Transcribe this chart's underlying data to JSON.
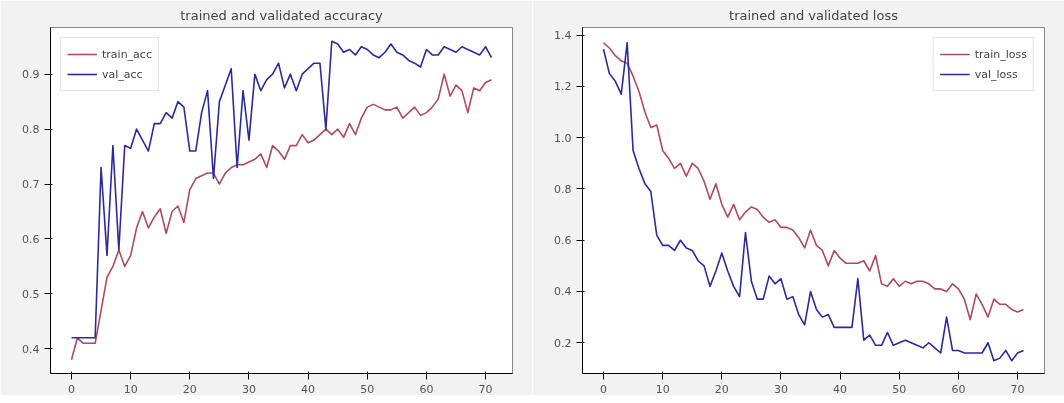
{
  "chart_data": [
    {
      "type": "line",
      "title": "trained and validated accuracy",
      "x": [
        0,
        1,
        2,
        3,
        4,
        5,
        6,
        7,
        8,
        9,
        10,
        11,
        12,
        13,
        14,
        15,
        16,
        17,
        18,
        19,
        20,
        21,
        22,
        23,
        24,
        25,
        26,
        27,
        28,
        29,
        30,
        31,
        32,
        33,
        34,
        35,
        36,
        37,
        38,
        39,
        40,
        41,
        42,
        43,
        44,
        45,
        46,
        47,
        48,
        49,
        50,
        51,
        52,
        53,
        54,
        55,
        56,
        57,
        58,
        59,
        60,
        61,
        62,
        63,
        64,
        65,
        66,
        67,
        68,
        69,
        70,
        71
      ],
      "series": [
        {
          "name": "train_acc",
          "color": "#b04a5e",
          "values": [
            0.38,
            0.42,
            0.41,
            0.41,
            0.41,
            0.47,
            0.53,
            0.55,
            0.58,
            0.55,
            0.57,
            0.62,
            0.65,
            0.62,
            0.64,
            0.655,
            0.61,
            0.65,
            0.66,
            0.63,
            0.69,
            0.71,
            0.715,
            0.72,
            0.72,
            0.7,
            0.72,
            0.73,
            0.735,
            0.735,
            0.74,
            0.745,
            0.755,
            0.73,
            0.77,
            0.76,
            0.745,
            0.77,
            0.77,
            0.79,
            0.775,
            0.78,
            0.79,
            0.8,
            0.79,
            0.8,
            0.785,
            0.81,
            0.79,
            0.82,
            0.84,
            0.845,
            0.84,
            0.835,
            0.835,
            0.84,
            0.82,
            0.83,
            0.84,
            0.825,
            0.83,
            0.84,
            0.855,
            0.9,
            0.86,
            0.88,
            0.87,
            0.83,
            0.875,
            0.87,
            0.885,
            0.89
          ]
        },
        {
          "name": "val_acc",
          "color": "#2b2b9c",
          "values": [
            0.42,
            0.42,
            0.42,
            0.42,
            0.42,
            0.73,
            0.57,
            0.77,
            0.58,
            0.77,
            0.765,
            0.8,
            0.78,
            0.76,
            0.81,
            0.81,
            0.83,
            0.82,
            0.85,
            0.84,
            0.76,
            0.76,
            0.83,
            0.87,
            0.71,
            0.85,
            0.88,
            0.91,
            0.73,
            0.87,
            0.78,
            0.9,
            0.87,
            0.89,
            0.9,
            0.92,
            0.875,
            0.9,
            0.87,
            0.9,
            0.91,
            0.92,
            0.92,
            0.8,
            0.96,
            0.955,
            0.94,
            0.945,
            0.935,
            0.95,
            0.945,
            0.935,
            0.93,
            0.94,
            0.955,
            0.94,
            0.935,
            0.925,
            0.92,
            0.913,
            0.945,
            0.935,
            0.935,
            0.95,
            0.945,
            0.94,
            0.95,
            0.945,
            0.94,
            0.935,
            0.95,
            0.93
          ]
        }
      ],
      "xlim": [
        -3.55,
        74.55
      ],
      "xticks": [
        0,
        10,
        20,
        30,
        40,
        50,
        60,
        70
      ],
      "ylim": [
        0.355,
        0.985
      ],
      "yticks": [
        0.4,
        0.5,
        0.6,
        0.7,
        0.8,
        0.9
      ],
      "grid": false,
      "legend": "top left",
      "marker": "none",
      "line_style": "solid"
    },
    {
      "type": "line",
      "title": "trained and validated loss",
      "x": [
        0,
        1,
        2,
        3,
        4,
        5,
        6,
        7,
        8,
        9,
        10,
        11,
        12,
        13,
        14,
        15,
        16,
        17,
        18,
        19,
        20,
        21,
        22,
        23,
        24,
        25,
        26,
        27,
        28,
        29,
        30,
        31,
        32,
        33,
        34,
        35,
        36,
        37,
        38,
        39,
        40,
        41,
        42,
        43,
        44,
        45,
        46,
        47,
        48,
        49,
        50,
        51,
        52,
        53,
        54,
        55,
        56,
        57,
        58,
        59,
        60,
        61,
        62,
        63,
        64,
        65,
        66,
        67,
        68,
        69,
        70,
        71
      ],
      "series": [
        {
          "name": "train_loss",
          "color": "#b04a5e",
          "values": [
            1.37,
            1.35,
            1.32,
            1.3,
            1.29,
            1.24,
            1.18,
            1.1,
            1.04,
            1.05,
            0.95,
            0.92,
            0.88,
            0.9,
            0.85,
            0.9,
            0.88,
            0.83,
            0.76,
            0.82,
            0.74,
            0.69,
            0.74,
            0.68,
            0.71,
            0.73,
            0.72,
            0.69,
            0.67,
            0.68,
            0.65,
            0.65,
            0.64,
            0.61,
            0.57,
            0.64,
            0.58,
            0.56,
            0.5,
            0.56,
            0.53,
            0.51,
            0.51,
            0.51,
            0.52,
            0.48,
            0.54,
            0.43,
            0.42,
            0.45,
            0.42,
            0.44,
            0.43,
            0.44,
            0.44,
            0.43,
            0.41,
            0.41,
            0.4,
            0.43,
            0.41,
            0.37,
            0.29,
            0.39,
            0.35,
            0.3,
            0.37,
            0.35,
            0.35,
            0.33,
            0.32,
            0.33
          ]
        },
        {
          "name": "val_loss",
          "color": "#2b2b9c",
          "values": [
            1.345,
            1.25,
            1.22,
            1.17,
            1.37,
            0.95,
            0.88,
            0.82,
            0.79,
            0.62,
            0.58,
            0.58,
            0.56,
            0.6,
            0.57,
            0.56,
            0.52,
            0.5,
            0.42,
            0.48,
            0.55,
            0.48,
            0.42,
            0.38,
            0.63,
            0.44,
            0.37,
            0.37,
            0.46,
            0.43,
            0.45,
            0.37,
            0.38,
            0.31,
            0.27,
            0.4,
            0.33,
            0.3,
            0.31,
            0.26,
            0.26,
            0.26,
            0.26,
            0.45,
            0.21,
            0.23,
            0.19,
            0.19,
            0.24,
            0.19,
            0.2,
            0.21,
            0.2,
            0.19,
            0.18,
            0.2,
            0.18,
            0.16,
            0.3,
            0.17,
            0.17,
            0.16,
            0.16,
            0.16,
            0.16,
            0.2,
            0.13,
            0.14,
            0.17,
            0.13,
            0.16,
            0.17
          ]
        }
      ],
      "xlim": [
        -3.55,
        74.55
      ],
      "xticks": [
        0,
        10,
        20,
        30,
        40,
        50,
        60,
        70
      ],
      "ylim": [
        0.08,
        1.43
      ],
      "yticks": [
        0.2,
        0.4,
        0.6,
        0.8,
        {
          "value": 1.0,
          "label": "1.0"
        },
        1.2,
        1.4
      ],
      "grid": false,
      "legend": "top right",
      "marker": "none",
      "line_style": "solid"
    }
  ]
}
